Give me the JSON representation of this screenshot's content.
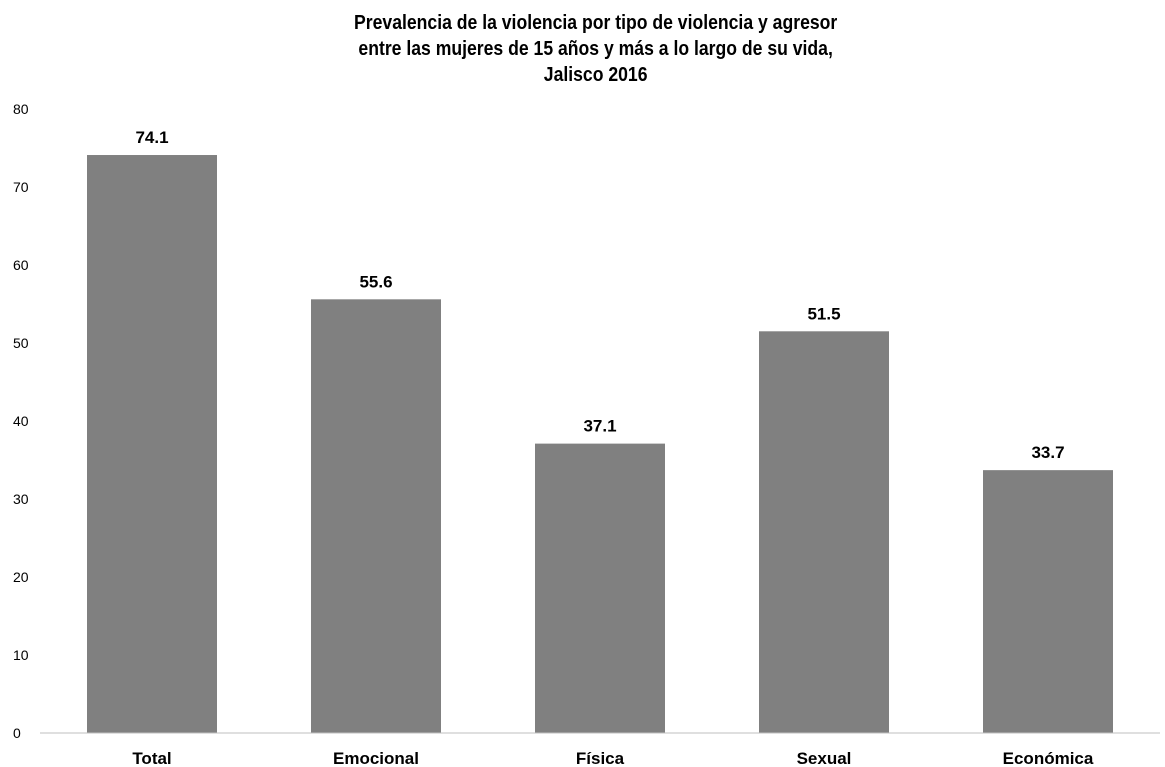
{
  "chart_data": {
    "type": "bar",
    "title_lines": [
      "Prevalencia de la violencia por tipo de violencia y agresor",
      "entre las mujeres de 15 años y más a lo largo de su vida,",
      "Jalisco 2016"
    ],
    "categories": [
      "Total",
      "Emocional",
      "Física",
      "Sexual",
      "Económica"
    ],
    "values": [
      74.1,
      55.6,
      37.1,
      51.5,
      33.7
    ],
    "data_labels": [
      "74.1",
      "55.6",
      "37.1",
      "51.5",
      "33.7"
    ],
    "ylim": [
      0,
      80
    ],
    "yticks": [
      0,
      10,
      20,
      30,
      40,
      50,
      60,
      70,
      80
    ],
    "grid": false,
    "legend": "none",
    "bar_color": "#808080"
  }
}
